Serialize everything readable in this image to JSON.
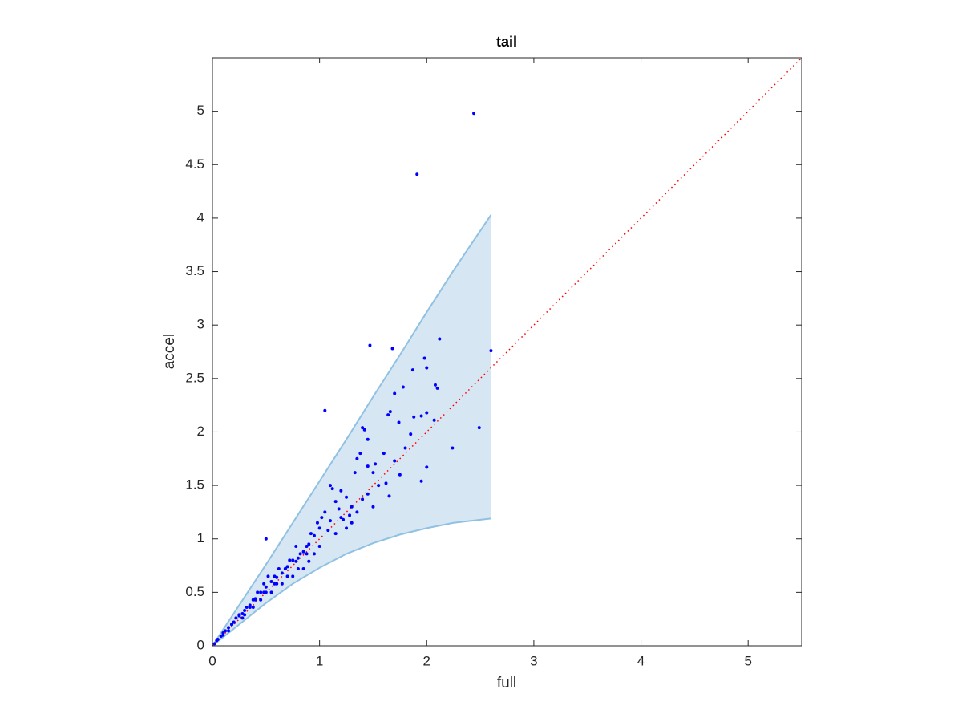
{
  "chart_data": {
    "type": "scatter",
    "title": "tail",
    "xlabel": "full",
    "ylabel": "accel",
    "xlim": [
      0,
      5.5
    ],
    "ylim": [
      0,
      5.5
    ],
    "xticks": [
      0,
      1,
      2,
      3,
      4,
      5
    ],
    "yticks": [
      0,
      0.5,
      1,
      1.5,
      2,
      2.5,
      3,
      3.5,
      4,
      4.5,
      5
    ],
    "points": {
      "color": "#0000ff",
      "x": [
        2.44,
        1.91,
        1.47,
        1.68,
        2.6,
        2.12,
        1.05,
        2.49,
        2.24,
        1.98,
        2.0,
        1.87,
        2.1,
        2.08,
        1.78,
        1.7,
        1.66,
        1.64,
        2.07,
        2.0,
        1.95,
        1.88,
        1.74,
        2.0,
        1.95,
        1.85,
        1.8,
        1.7,
        1.62,
        1.65,
        1.4,
        1.42,
        1.45,
        1.38,
        1.45,
        1.5,
        1.52,
        1.55,
        1.33,
        1.35,
        1.2,
        1.1,
        1.12,
        1.25,
        1.3,
        1.4,
        1.45,
        1.5,
        1.35,
        1.2,
        1.1,
        1.05,
        1.0,
        1.08,
        0.95,
        0.9,
        0.5,
        0.85,
        0.8,
        0.75,
        0.7,
        0.65,
        0.6,
        0.55,
        0.5,
        0.45,
        0.4,
        0.35,
        0.3,
        0.25,
        0.2,
        0.15,
        0.1,
        0.05,
        0.02,
        1.15,
        1.18,
        1.22,
        1.28,
        1.02,
        0.98,
        0.92,
        0.88,
        0.82,
        0.78,
        0.72,
        0.68,
        0.62,
        0.58,
        0.52,
        0.48,
        0.42,
        0.38,
        0.32,
        0.28,
        0.22,
        0.18,
        0.12,
        0.08,
        0.04,
        0.95,
        0.9,
        0.85,
        0.8,
        0.75,
        0.7,
        0.65,
        0.6,
        0.55,
        0.5,
        0.45,
        0.4,
        0.35,
        0.3,
        0.25,
        0.2,
        0.15,
        0.1,
        1.6,
        1.75,
        1.3,
        1.25,
        1.15,
        1.0,
        0.88,
        0.78,
        0.68,
        0.58,
        0.48,
        0.38,
        0.28,
        0.18
      ],
      "y": [
        4.98,
        4.41,
        2.81,
        2.78,
        2.76,
        2.87,
        2.2,
        2.04,
        1.85,
        2.69,
        2.6,
        2.58,
        2.41,
        2.44,
        2.42,
        2.36,
        2.19,
        2.16,
        2.11,
        2.18,
        2.15,
        2.14,
        2.09,
        1.67,
        1.54,
        1.98,
        1.85,
        1.73,
        1.52,
        1.4,
        2.04,
        2.02,
        1.93,
        1.8,
        1.68,
        1.62,
        1.7,
        1.5,
        1.62,
        1.75,
        1.45,
        1.5,
        1.47,
        1.39,
        1.3,
        1.37,
        1.42,
        1.3,
        1.25,
        1.2,
        1.17,
        1.25,
        1.1,
        1.08,
        1.03,
        0.95,
        1.0,
        0.88,
        0.82,
        0.8,
        0.74,
        0.68,
        0.64,
        0.6,
        0.55,
        0.5,
        0.44,
        0.38,
        0.33,
        0.28,
        0.22,
        0.17,
        0.12,
        0.06,
        0.02,
        1.35,
        1.28,
        1.18,
        1.22,
        1.2,
        1.15,
        1.05,
        0.93,
        0.86,
        0.93,
        0.8,
        0.72,
        0.72,
        0.65,
        0.65,
        0.58,
        0.5,
        0.43,
        0.36,
        0.3,
        0.26,
        0.2,
        0.14,
        0.09,
        0.05,
        0.86,
        0.79,
        0.72,
        0.72,
        0.65,
        0.65,
        0.58,
        0.58,
        0.5,
        0.5,
        0.43,
        0.43,
        0.36,
        0.29,
        0.29,
        0.22,
        0.14,
        0.1,
        1.8,
        1.6,
        1.15,
        1.1,
        1.05,
        0.93,
        0.86,
        0.79,
        0.72,
        0.58,
        0.5,
        0.36,
        0.26,
        0.2
      ]
    },
    "band": {
      "color": "#8fc1e3",
      "fill": "#d7e6f3",
      "x": [
        0,
        0.25,
        0.5,
        0.75,
        1,
        1.25,
        1.5,
        1.75,
        2,
        2.25,
        2.6
      ],
      "upper": [
        0,
        0.38,
        0.76,
        1.15,
        1.54,
        1.93,
        2.33,
        2.72,
        3.12,
        3.51,
        4.03
      ],
      "lower": [
        0,
        0.2,
        0.4,
        0.58,
        0.73,
        0.86,
        0.96,
        1.04,
        1.1,
        1.15,
        1.19
      ]
    },
    "line": {
      "color": "#ff0000",
      "x": [
        0,
        5.5
      ],
      "y": [
        0,
        5.5
      ]
    }
  }
}
